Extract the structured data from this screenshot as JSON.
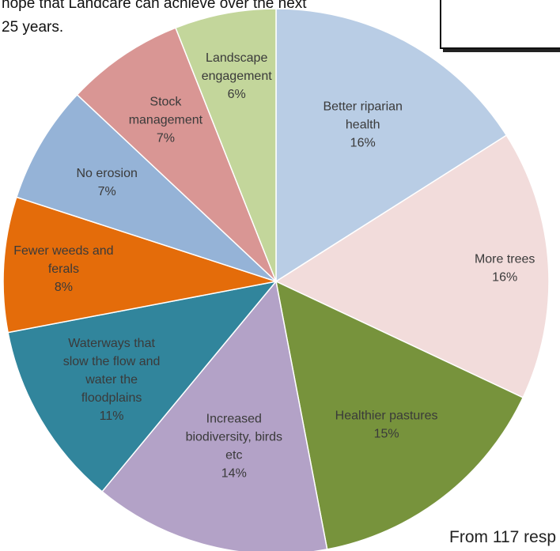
{
  "intro": {
    "lines": [
      "hope that Landcare can achieve over the next",
      "25 years."
    ]
  },
  "footer_note": "From 117 resp",
  "chart_data": {
    "type": "pie",
    "start_angle_deg": 0,
    "direction": "clockwise",
    "slices": [
      {
        "label": [
          "Better riparian",
          "health"
        ],
        "value": 16,
        "display": "16%",
        "color": "#b9cde5"
      },
      {
        "label": [
          "More trees"
        ],
        "value": 16,
        "display": "16%",
        "color": "#f2dcdb"
      },
      {
        "label": [
          "Healthier pastures"
        ],
        "value": 15,
        "display": "15%",
        "color": "#77933c"
      },
      {
        "label": [
          "Increased",
          "biodiversity, birds",
          "etc"
        ],
        "value": 14,
        "display": "14%",
        "color": "#b3a2c7"
      },
      {
        "label": [
          "Waterways that",
          "slow the flow and",
          "water the",
          "floodplains"
        ],
        "value": 11,
        "display": "11%",
        "color": "#31859c"
      },
      {
        "label": [
          "Fewer weeds and",
          "ferals"
        ],
        "value": 8,
        "display": "8%",
        "color": "#e46c0a"
      },
      {
        "label": [
          "No erosion"
        ],
        "value": 7,
        "display": "7%",
        "color": "#95b3d7"
      },
      {
        "label": [
          "Stock",
          "management"
        ],
        "value": 7,
        "display": "7%",
        "color": "#d99694"
      },
      {
        "label": [
          "Landscape",
          "engagement"
        ],
        "value": 6,
        "display": "6%",
        "color": "#c3d69b"
      }
    ]
  }
}
